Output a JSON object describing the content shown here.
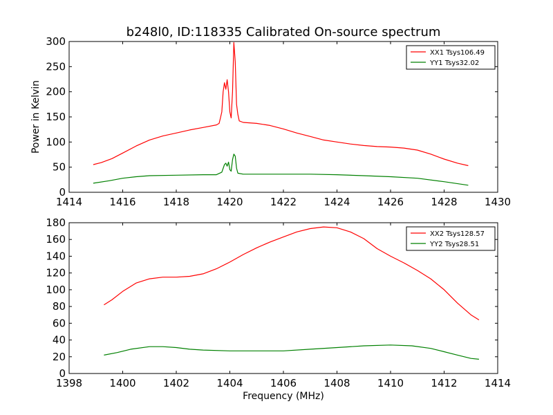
{
  "figure": {
    "title": "b248l0, ID:118335 Calibrated On-source spectrum",
    "shared_ylabel": "Power in Kelvin",
    "shared_xlabel": "Frequency (MHz)"
  },
  "colors": {
    "series_red": "#ff0000",
    "series_green": "#008000",
    "axes": "#000000"
  },
  "chart_data": [
    {
      "type": "line",
      "title": "b248l0, ID:118335 Calibrated On-source spectrum",
      "xlabel": "",
      "ylabel": "Power in Kelvin",
      "xlim": [
        1414,
        1430
      ],
      "ylim": [
        0,
        300
      ],
      "xticks": [
        1414,
        1416,
        1418,
        1420,
        1422,
        1424,
        1426,
        1428,
        1430
      ],
      "yticks": [
        0,
        50,
        100,
        150,
        200,
        250,
        300
      ],
      "grid": false,
      "legend_position": "top-right",
      "series": [
        {
          "name": "XX1 Tsys106.49",
          "color": "#ff0000",
          "points": [
            [
              1414.9,
              55
            ],
            [
              1415.2,
              59
            ],
            [
              1415.6,
              67
            ],
            [
              1416.0,
              78
            ],
            [
              1416.5,
              92
            ],
            [
              1417.0,
              104
            ],
            [
              1417.5,
              112
            ],
            [
              1418.0,
              118
            ],
            [
              1418.5,
              124
            ],
            [
              1419.0,
              129
            ],
            [
              1419.5,
              134
            ],
            [
              1419.6,
              137
            ],
            [
              1419.65,
              148
            ],
            [
              1419.7,
              160
            ],
            [
              1419.75,
              200
            ],
            [
              1419.8,
              218
            ],
            [
              1419.85,
              205
            ],
            [
              1419.9,
              224
            ],
            [
              1419.95,
              200
            ],
            [
              1420.0,
              160
            ],
            [
              1420.05,
              148
            ],
            [
              1420.1,
              200
            ],
            [
              1420.15,
              298
            ],
            [
              1420.2,
              260
            ],
            [
              1420.25,
              175
            ],
            [
              1420.3,
              155
            ],
            [
              1420.35,
              142
            ],
            [
              1420.5,
              139
            ],
            [
              1421.0,
              137
            ],
            [
              1421.5,
              133
            ],
            [
              1422.0,
              126
            ],
            [
              1422.5,
              118
            ],
            [
              1423.0,
              111
            ],
            [
              1423.5,
              104
            ],
            [
              1424.0,
              100
            ],
            [
              1424.5,
              96
            ],
            [
              1425.0,
              93
            ],
            [
              1425.5,
              91
            ],
            [
              1426.0,
              90
            ],
            [
              1426.5,
              88
            ],
            [
              1427.0,
              84
            ],
            [
              1427.5,
              76
            ],
            [
              1428.0,
              66
            ],
            [
              1428.5,
              58
            ],
            [
              1428.9,
              53
            ]
          ]
        },
        {
          "name": "YY1 Tsys32.02",
          "color": "#008000",
          "points": [
            [
              1414.9,
              18
            ],
            [
              1415.5,
              23
            ],
            [
              1416.0,
              28
            ],
            [
              1416.5,
              31
            ],
            [
              1417.0,
              33
            ],
            [
              1418.0,
              34
            ],
            [
              1419.0,
              35
            ],
            [
              1419.5,
              35
            ],
            [
              1419.7,
              40
            ],
            [
              1419.8,
              55
            ],
            [
              1419.85,
              58
            ],
            [
              1419.9,
              52
            ],
            [
              1419.95,
              60
            ],
            [
              1420.0,
              45
            ],
            [
              1420.05,
              42
            ],
            [
              1420.1,
              65
            ],
            [
              1420.15,
              76
            ],
            [
              1420.2,
              72
            ],
            [
              1420.25,
              48
            ],
            [
              1420.3,
              38
            ],
            [
              1420.5,
              36
            ],
            [
              1421.0,
              36
            ],
            [
              1422.0,
              36
            ],
            [
              1423.0,
              36
            ],
            [
              1424.0,
              35
            ],
            [
              1425.0,
              33
            ],
            [
              1426.0,
              31
            ],
            [
              1427.0,
              28
            ],
            [
              1428.0,
              21
            ],
            [
              1428.9,
              14
            ]
          ]
        }
      ]
    },
    {
      "type": "line",
      "title": "",
      "xlabel": "Frequency (MHz)",
      "ylabel": "",
      "xlim": [
        1398,
        1414
      ],
      "ylim": [
        0,
        180
      ],
      "xticks": [
        1398,
        1400,
        1402,
        1404,
        1406,
        1408,
        1410,
        1412,
        1414
      ],
      "yticks": [
        0,
        20,
        40,
        60,
        80,
        100,
        120,
        140,
        160,
        180
      ],
      "grid": false,
      "legend_position": "top-right",
      "series": [
        {
          "name": "XX2 Tsys128.57",
          "color": "#ff0000",
          "points": [
            [
              1399.3,
              82
            ],
            [
              1399.6,
              88
            ],
            [
              1400.0,
              98
            ],
            [
              1400.5,
              108
            ],
            [
              1401.0,
              113
            ],
            [
              1401.5,
              115
            ],
            [
              1402.0,
              115
            ],
            [
              1402.5,
              116
            ],
            [
              1403.0,
              119
            ],
            [
              1403.5,
              125
            ],
            [
              1404.0,
              133
            ],
            [
              1404.5,
              142
            ],
            [
              1405.0,
              150
            ],
            [
              1405.5,
              157
            ],
            [
              1406.0,
              163
            ],
            [
              1406.5,
              169
            ],
            [
              1407.0,
              173
            ],
            [
              1407.5,
              175
            ],
            [
              1408.0,
              174
            ],
            [
              1408.5,
              169
            ],
            [
              1409.0,
              161
            ],
            [
              1409.5,
              149
            ],
            [
              1410.0,
              140
            ],
            [
              1410.5,
              132
            ],
            [
              1411.0,
              123
            ],
            [
              1411.5,
              113
            ],
            [
              1412.0,
              100
            ],
            [
              1412.5,
              84
            ],
            [
              1413.0,
              70
            ],
            [
              1413.3,
              64
            ]
          ]
        },
        {
          "name": "YY2 Tsys28.51",
          "color": "#008000",
          "points": [
            [
              1399.3,
              22
            ],
            [
              1399.8,
              25
            ],
            [
              1400.3,
              29
            ],
            [
              1401.0,
              32
            ],
            [
              1401.5,
              32
            ],
            [
              1402.0,
              31
            ],
            [
              1402.5,
              29
            ],
            [
              1403.0,
              28
            ],
            [
              1404.0,
              27
            ],
            [
              1405.0,
              27
            ],
            [
              1406.0,
              27
            ],
            [
              1407.0,
              29
            ],
            [
              1408.0,
              31
            ],
            [
              1409.0,
              33
            ],
            [
              1410.0,
              34
            ],
            [
              1410.8,
              33
            ],
            [
              1411.5,
              30
            ],
            [
              1412.0,
              26
            ],
            [
              1412.5,
              22
            ],
            [
              1413.0,
              18
            ],
            [
              1413.3,
              17
            ]
          ]
        }
      ]
    }
  ]
}
